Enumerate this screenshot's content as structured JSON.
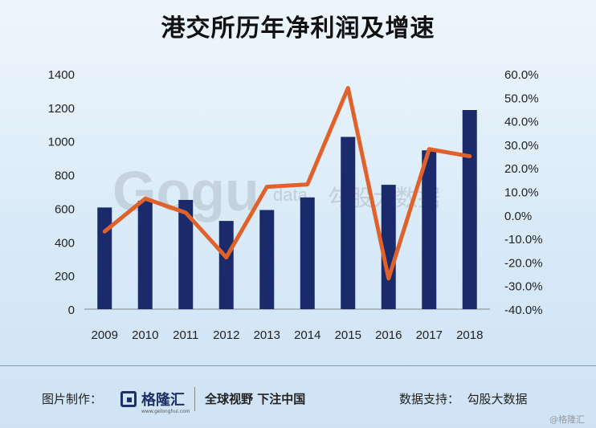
{
  "title": "港交所历年净利润及增速",
  "watermark": {
    "brand": "Gogu",
    "brand_sub": "data",
    "cn": "勾股大数据"
  },
  "footer": {
    "made_by_label": "图片制作：",
    "brand_name": "格隆汇",
    "brand_url": "www.gelonghui.com",
    "slogan": "全球视野 下注中国",
    "data_support": "数据支持：  勾股大数据",
    "corner_mark": "@格隆汇"
  },
  "colors": {
    "bar": "#1b2a6b",
    "line": "#e0622a",
    "axis": "#222222"
  },
  "chart_data": {
    "type": "bar+line",
    "title": "港交所历年净利润及增速",
    "categories": [
      "2009",
      "2010",
      "2011",
      "2012",
      "2013",
      "2014",
      "2015",
      "2016",
      "2017",
      "2018"
    ],
    "series": [
      {
        "type": "bar",
        "axis": "left",
        "values": [
          605,
          645,
          650,
          525,
          590,
          665,
          1025,
          740,
          945,
          1185
        ]
      },
      {
        "type": "line",
        "axis": "right",
        "values": [
          -7,
          7,
          1,
          -18,
          12,
          13,
          54,
          -27,
          28,
          25
        ]
      }
    ],
    "y_left": {
      "min": 0,
      "max": 1400,
      "ticks": [
        0,
        200,
        400,
        600,
        800,
        1000,
        1200,
        1400
      ]
    },
    "y_right": {
      "min": -40,
      "max": 60,
      "ticks": [
        -40,
        -30,
        -20,
        -10,
        0,
        10,
        20,
        30,
        40,
        50,
        60
      ],
      "tick_labels": [
        "-40.0%",
        "-30.0%",
        "-20.0%",
        "-10.0%",
        "0.0%",
        "10.0%",
        "20.0%",
        "30.0%",
        "40.0%",
        "50.0%",
        "60.0%"
      ]
    },
    "legend": "none",
    "grid": false
  }
}
